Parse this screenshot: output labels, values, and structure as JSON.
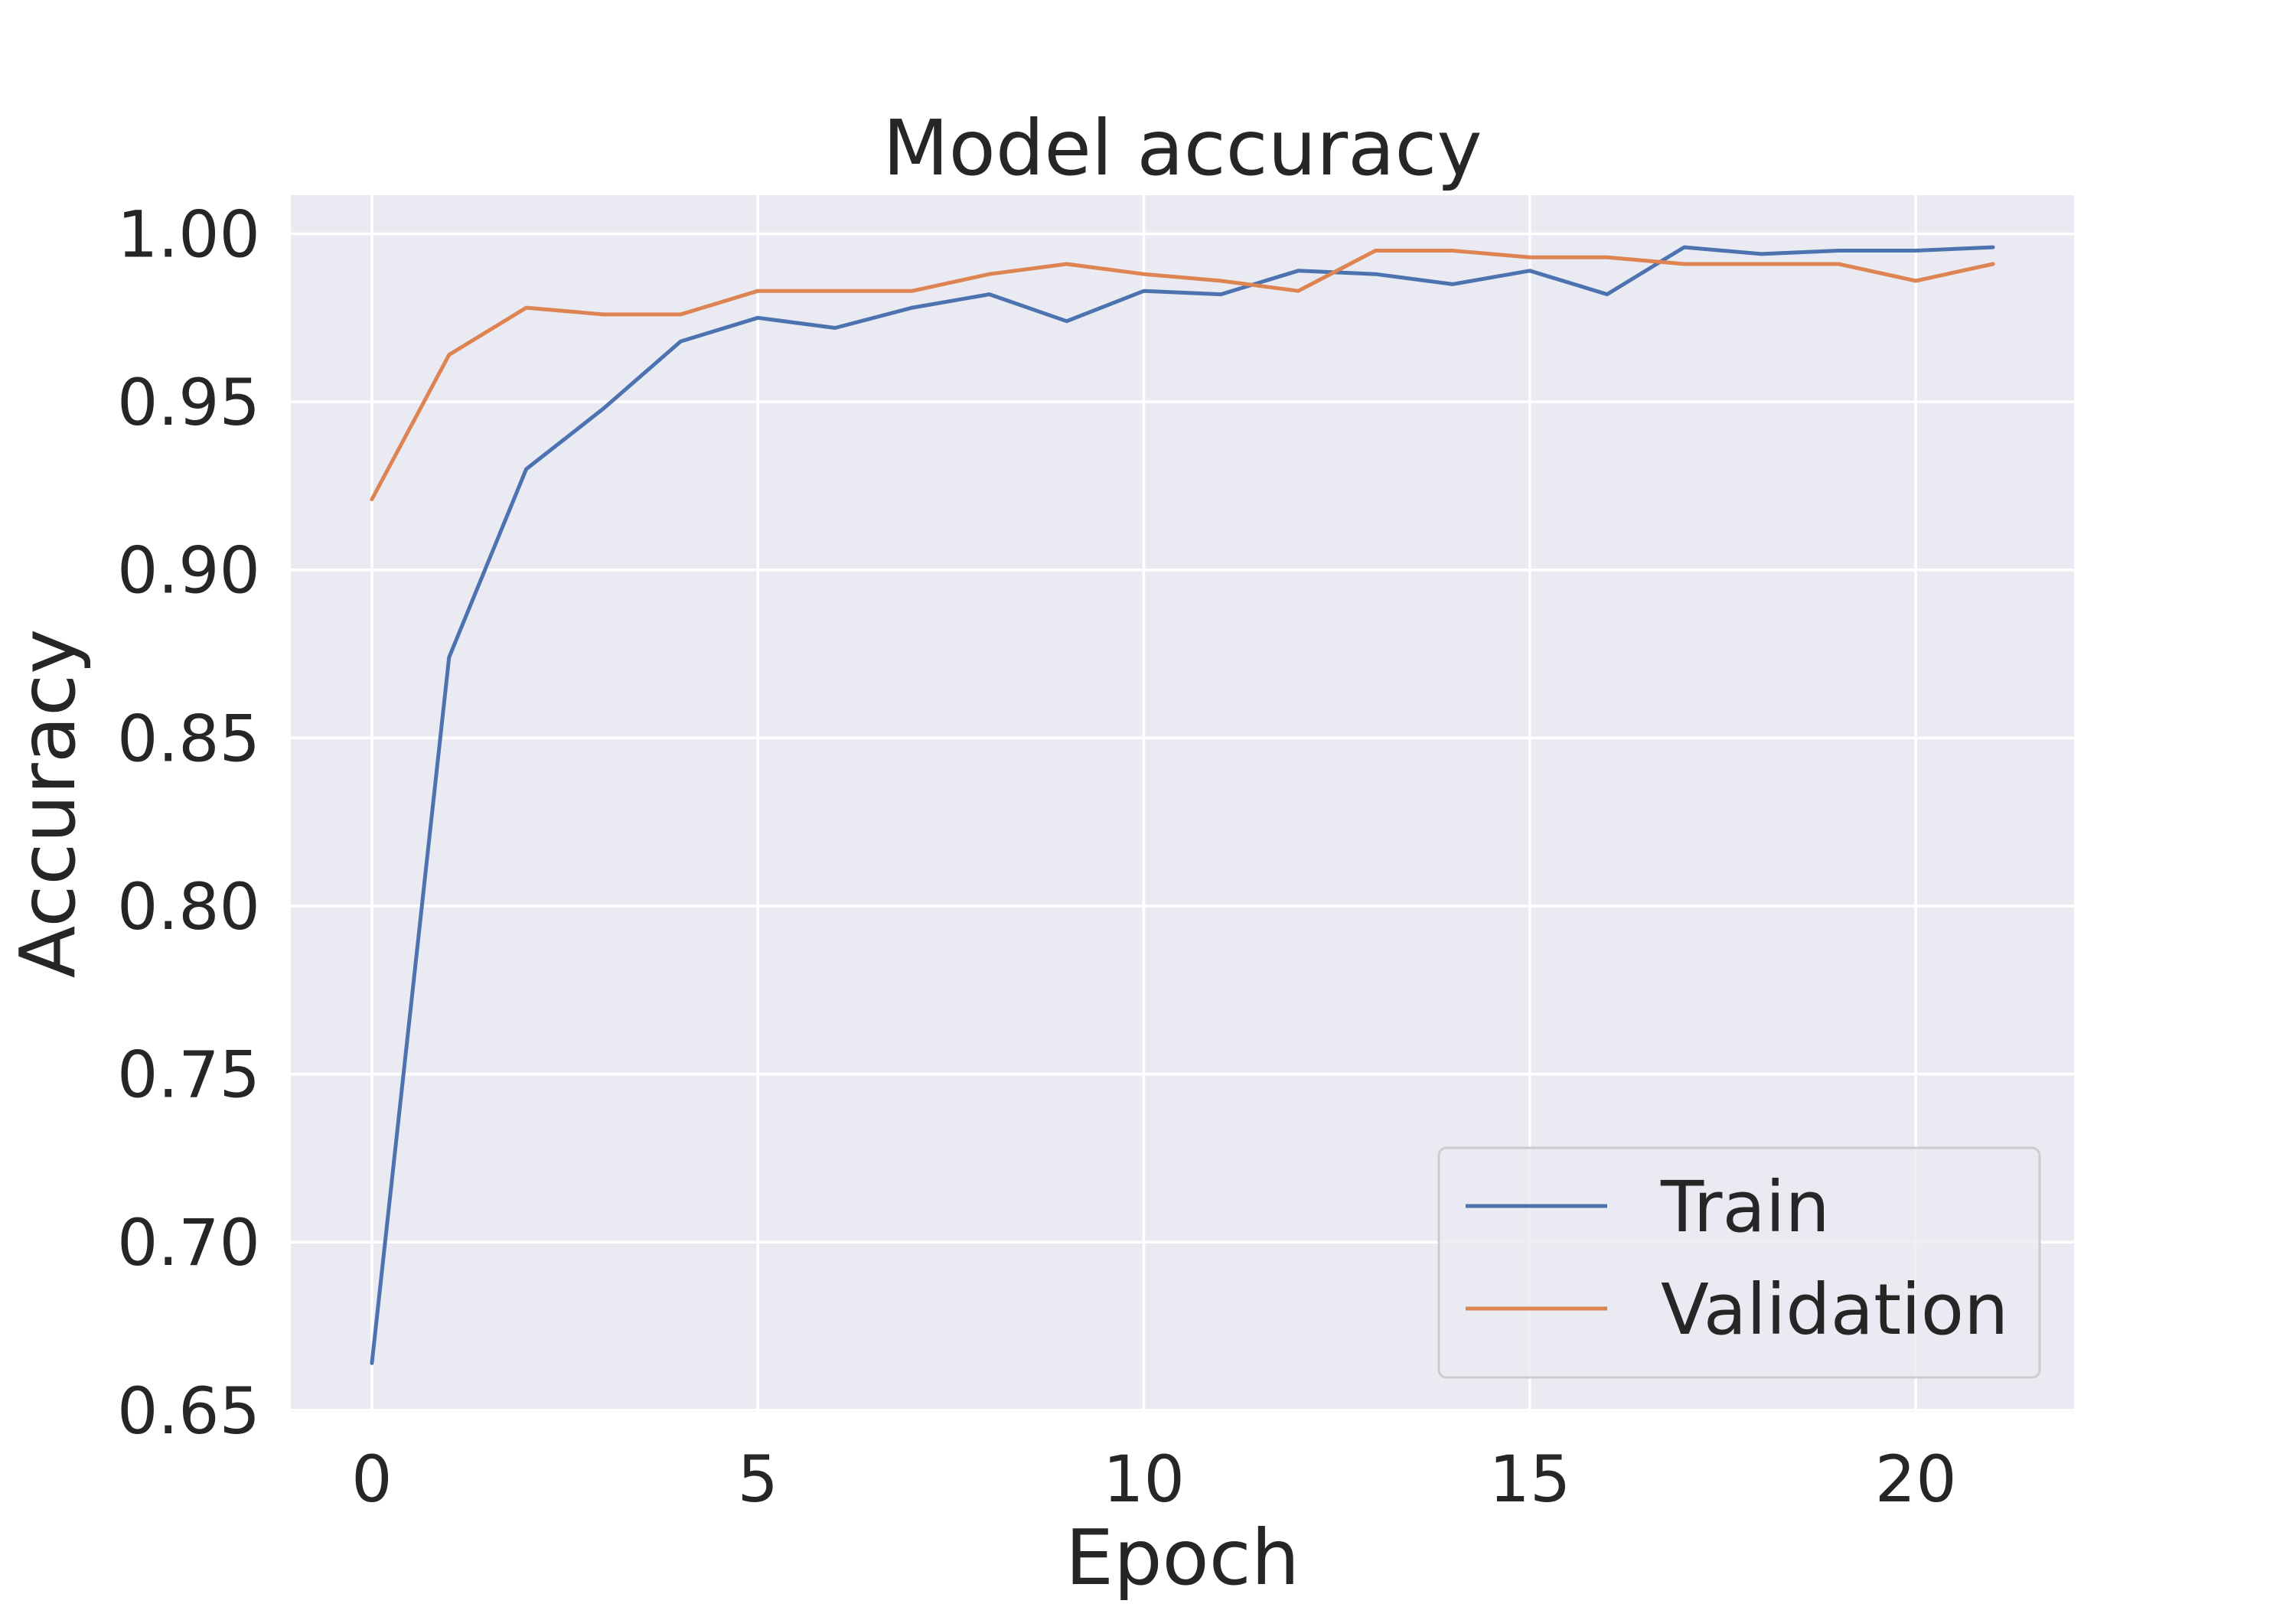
{
  "colors": {
    "background": "#ffffff",
    "plot_bg": "#eaeaf2",
    "grid": "#ffffff",
    "text": "#262626",
    "train": "#4c72b0",
    "validation": "#dd8452"
  },
  "chart_data": {
    "type": "line",
    "title": "Model accuracy",
    "xlabel": "Epoch",
    "ylabel": "Accuracy",
    "xlim": [
      -1.05,
      22.05
    ],
    "ylim": [
      0.6495,
      1.0115
    ],
    "grid": true,
    "legend_position": "lower-right",
    "xticks": [
      0,
      5,
      10,
      15,
      20
    ],
    "xtick_labels": [
      "0",
      "5",
      "10",
      "15",
      "20"
    ],
    "yticks": [
      0.65,
      0.7,
      0.75,
      0.8,
      0.85,
      0.9,
      0.95,
      1.0
    ],
    "ytick_labels": [
      "0.65",
      "0.70",
      "0.75",
      "0.80",
      "0.85",
      "0.90",
      "0.95",
      "1.00"
    ],
    "x": [
      0,
      1,
      2,
      3,
      4,
      5,
      6,
      7,
      8,
      9,
      10,
      11,
      12,
      13,
      14,
      15,
      16,
      17,
      18,
      19,
      20,
      21
    ],
    "series": [
      {
        "name": "Train",
        "color": "#4c72b0",
        "values": [
          0.664,
          0.874,
          0.93,
          0.948,
          0.968,
          0.975,
          0.972,
          0.978,
          0.982,
          0.974,
          0.983,
          0.982,
          0.989,
          0.988,
          0.985,
          0.989,
          0.982,
          0.996,
          0.994,
          0.995,
          0.995,
          0.996
        ]
      },
      {
        "name": "Validation",
        "color": "#dd8452",
        "values": [
          0.921,
          0.964,
          0.978,
          0.976,
          0.976,
          0.983,
          0.983,
          0.983,
          0.988,
          0.991,
          0.988,
          0.986,
          0.983,
          0.995,
          0.995,
          0.993,
          0.993,
          0.991,
          0.991,
          0.991,
          0.986,
          0.991
        ]
      }
    ]
  }
}
